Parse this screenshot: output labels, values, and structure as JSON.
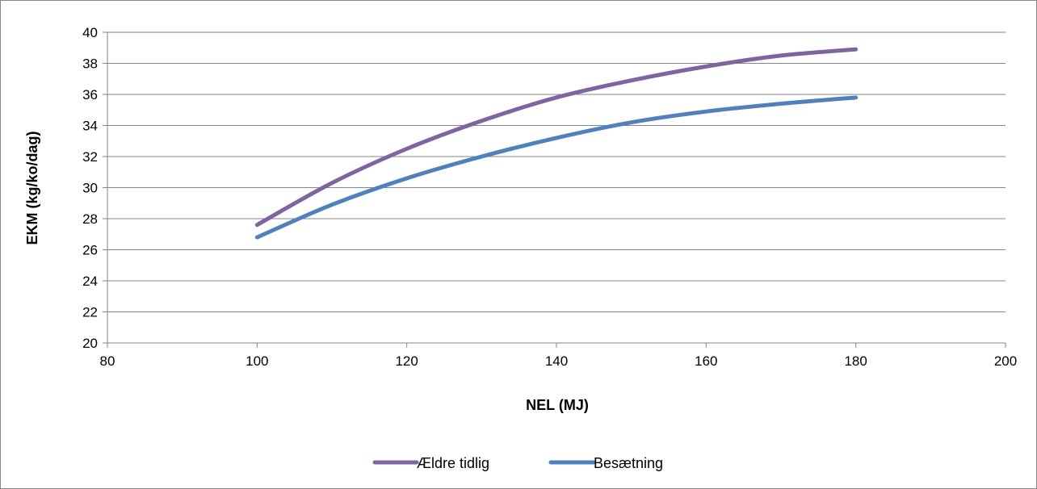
{
  "chart_data": {
    "type": "line",
    "title": "",
    "xlabel": "NEL (MJ)",
    "ylabel": "EKM (kg/ko/dag)",
    "xlim": [
      80,
      200
    ],
    "ylim": [
      20,
      40
    ],
    "xticks": [
      80,
      100,
      120,
      140,
      160,
      180,
      200
    ],
    "yticks": [
      20,
      22,
      24,
      26,
      28,
      30,
      32,
      34,
      36,
      38,
      40
    ],
    "grid": "horizontal",
    "legend_position": "bottom",
    "series": [
      {
        "name": "Ældre tidlig",
        "color": "#8064A2",
        "x": [
          100,
          110,
          120,
          130,
          140,
          150,
          160,
          170,
          180
        ],
        "y": [
          27.6,
          30.3,
          32.5,
          34.3,
          35.8,
          36.9,
          37.8,
          38.5,
          38.9
        ]
      },
      {
        "name": "Besætning",
        "color": "#4F81BD",
        "x": [
          100,
          110,
          120,
          130,
          140,
          150,
          160,
          170,
          180
        ],
        "y": [
          26.8,
          28.9,
          30.6,
          32.0,
          33.2,
          34.2,
          34.9,
          35.4,
          35.8
        ]
      }
    ]
  }
}
